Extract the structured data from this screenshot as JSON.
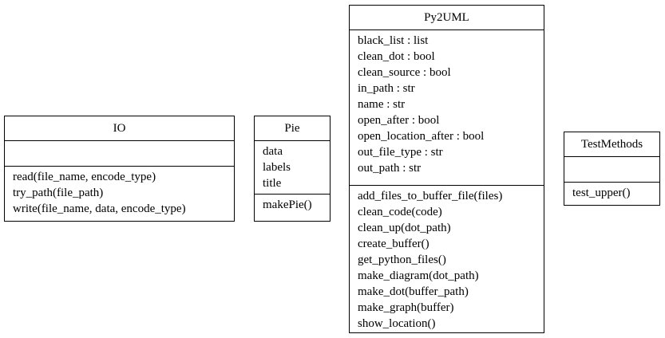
{
  "classes": [
    {
      "name": "IO",
      "attributes": [],
      "methods": [
        "read(file_name, encode_type)",
        "try_path(file_path)",
        "write(file_name, data, encode_type)"
      ]
    },
    {
      "name": "Pie",
      "attributes": [
        "data",
        "labels",
        "title"
      ],
      "methods": [
        "makePie()"
      ]
    },
    {
      "name": "Py2UML",
      "attributes": [
        "black_list : list",
        "clean_dot : bool",
        "clean_source : bool",
        "in_path : str",
        "name : str",
        "open_after : bool",
        "open_location_after : bool",
        "out_file_type : str",
        "out_path : str"
      ],
      "methods": [
        "add_files_to_buffer_file(files)",
        "clean_code(code)",
        "clean_up(dot_path)",
        "create_buffer()",
        "get_python_files()",
        "make_diagram(dot_path)",
        "make_dot(buffer_path)",
        "make_graph(buffer)",
        "show_location()"
      ]
    },
    {
      "name": "TestMethods",
      "attributes": [],
      "methods": [
        "test_upper()"
      ]
    }
  ]
}
